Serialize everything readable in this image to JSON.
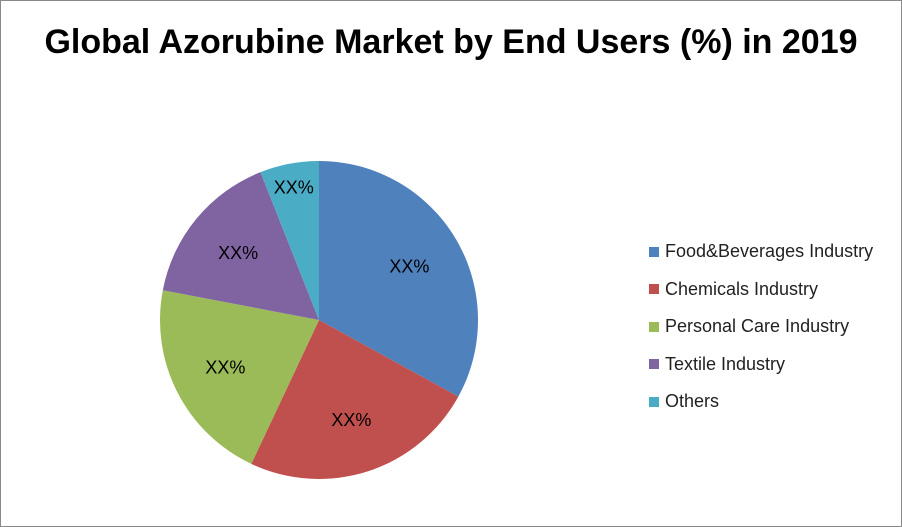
{
  "chart_data": {
    "type": "pie",
    "title": "Global Azorubine Market by End Users (%) in 2019",
    "categories": [
      "Food&Beverages Industry",
      "Chemicals Industry",
      "Personal Care Industry",
      "Textile Industry",
      "Others"
    ],
    "values": [
      33,
      24,
      21,
      16,
      6
    ],
    "data_labels": [
      "XX%",
      "XX%",
      "XX%",
      "XX%",
      "XX%"
    ],
    "colors": [
      "#4f81bd",
      "#c0504d",
      "#9bbb59",
      "#8064a2",
      "#4bacc6"
    ],
    "legend_position": "right"
  }
}
